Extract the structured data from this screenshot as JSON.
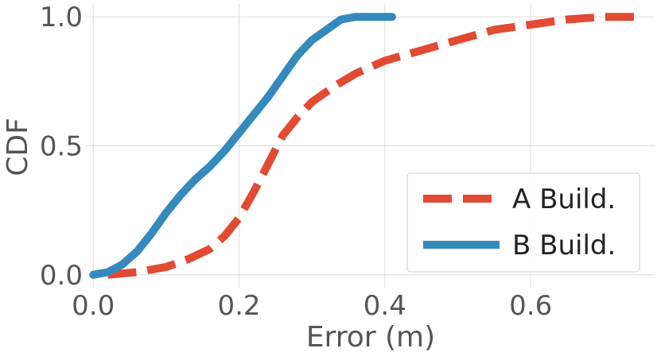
{
  "chart_data": {
    "type": "line",
    "xlabel": "Error (m)",
    "ylabel": "CDF",
    "xlim": [
      -0.01,
      0.77
    ],
    "ylim": [
      -0.05,
      1.05
    ],
    "x_ticks": [
      0.0,
      0.2,
      0.4,
      0.6
    ],
    "x_tick_labels": [
      "0.0",
      "0.2",
      "0.4",
      "0.6"
    ],
    "y_ticks": [
      0.0,
      0.5,
      1.0
    ],
    "y_tick_labels": [
      "0.0",
      "0.5",
      "1.0"
    ],
    "grid": true,
    "legend": {
      "placement": "lower-right"
    },
    "series": [
      {
        "name": "A Build.",
        "color": "#E24A33",
        "style": "dashed",
        "x": [
          0.02,
          0.06,
          0.1,
          0.13,
          0.16,
          0.18,
          0.2,
          0.22,
          0.24,
          0.26,
          0.28,
          0.3,
          0.33,
          0.36,
          0.4,
          0.45,
          0.5,
          0.55,
          0.6,
          0.65,
          0.7,
          0.75
        ],
        "y": [
          0.0,
          0.01,
          0.03,
          0.06,
          0.1,
          0.15,
          0.22,
          0.32,
          0.43,
          0.54,
          0.61,
          0.67,
          0.73,
          0.78,
          0.83,
          0.87,
          0.91,
          0.95,
          0.97,
          0.99,
          1.0,
          1.0
        ]
      },
      {
        "name": "B Build.",
        "color": "#348ABD",
        "style": "solid",
        "x": [
          0.0,
          0.02,
          0.04,
          0.06,
          0.08,
          0.1,
          0.12,
          0.14,
          0.16,
          0.18,
          0.2,
          0.22,
          0.24,
          0.26,
          0.28,
          0.3,
          0.32,
          0.34,
          0.36,
          0.38,
          0.41
        ],
        "y": [
          0.0,
          0.01,
          0.04,
          0.09,
          0.16,
          0.24,
          0.31,
          0.37,
          0.42,
          0.48,
          0.55,
          0.62,
          0.69,
          0.77,
          0.85,
          0.91,
          0.95,
          0.99,
          1.0,
          1.0,
          1.0
        ]
      }
    ]
  }
}
